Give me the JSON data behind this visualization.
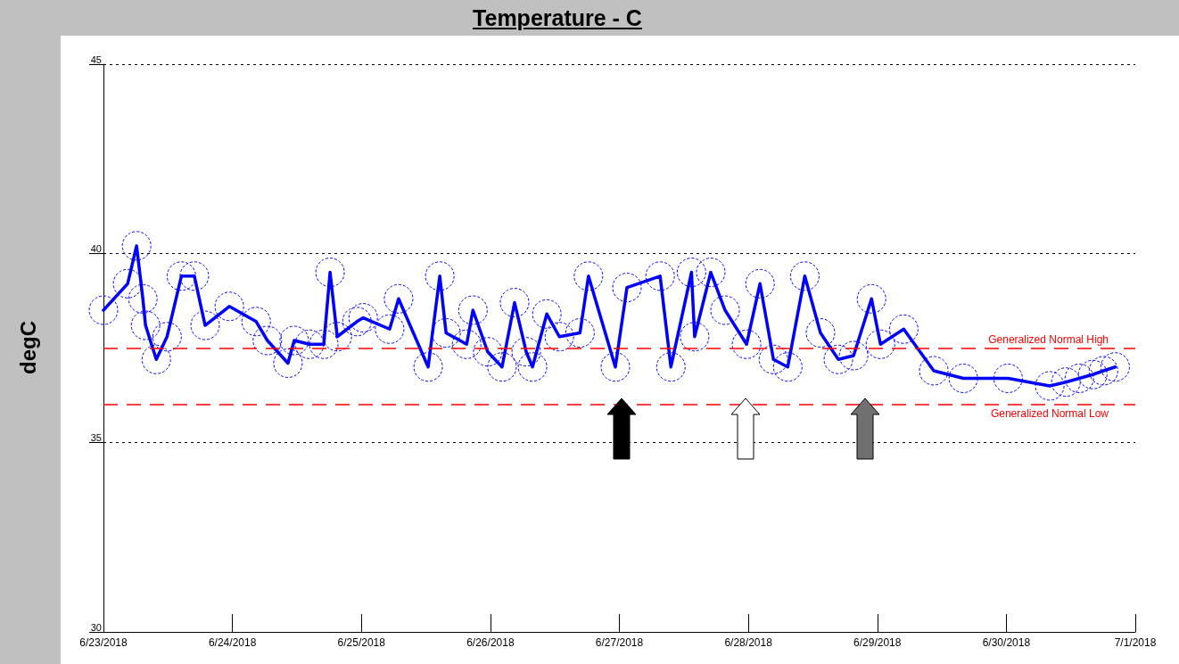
{
  "chart_data": {
    "type": "line",
    "title": "Temperature - C",
    "ylabel": "degC",
    "x": [
      "2018-06-23T00:00",
      "2018-06-23T04:30",
      "2018-06-23T06:10",
      "2018-06-23T07:20",
      "2018-06-23T07:50",
      "2018-06-23T09:50",
      "2018-06-23T11:50",
      "2018-06-23T14:30",
      "2018-06-23T16:55",
      "2018-06-23T18:55",
      "2018-06-23T23:25",
      "2018-06-24T04:25",
      "2018-06-24T06:30",
      "2018-06-24T10:20",
      "2018-06-24T11:30",
      "2018-06-24T14:20",
      "2018-06-24T17:00",
      "2018-06-24T18:10",
      "2018-06-24T19:30",
      "2018-06-24T23:10",
      "2018-06-25T00:20",
      "2018-06-25T05:15",
      "2018-06-25T06:55",
      "2018-06-25T12:25",
      "2018-06-25T14:35",
      "2018-06-25T15:45",
      "2018-06-25T19:35",
      "2018-06-25T20:45",
      "2018-06-25T23:30",
      "2018-06-26T02:10",
      "2018-06-26T04:30",
      "2018-06-26T06:40",
      "2018-06-26T07:50",
      "2018-06-26T10:30",
      "2018-06-26T12:50",
      "2018-06-26T16:40",
      "2018-06-26T18:15",
      "2018-06-26T23:15",
      "2018-06-27T01:25",
      "2018-06-27T07:35",
      "2018-06-27T09:35",
      "2018-06-27T13:25",
      "2018-06-27T14:00",
      "2018-06-27T17:00",
      "2018-06-27T19:40",
      "2018-06-27T23:40",
      "2018-06-28T02:10",
      "2018-06-28T04:40",
      "2018-06-28T07:20",
      "2018-06-28T10:30",
      "2018-06-28T13:25",
      "2018-06-28T16:45",
      "2018-06-28T19:35",
      "2018-06-28T22:55",
      "2018-06-29T00:35",
      "2018-06-29T04:55",
      "2018-06-29T10:30",
      "2018-06-29T16:00",
      "2018-06-30T00:20",
      "2018-06-30T08:05",
      "2018-06-30T11:05",
      "2018-06-30T13:35",
      "2018-06-30T16:05",
      "2018-06-30T18:05",
      "2018-06-30T20:15"
    ],
    "series": [
      {
        "color": "#0000ff",
        "values": [
          38.5,
          39.2,
          40.2,
          38.8,
          38.1,
          37.2,
          37.8,
          39.4,
          39.4,
          38.1,
          38.6,
          38.2,
          37.7,
          37.1,
          37.7,
          37.6,
          37.6,
          39.5,
          37.8,
          38.2,
          38.3,
          38.0,
          38.8,
          37.0,
          39.4,
          37.9,
          37.6,
          38.5,
          37.4,
          37.0,
          38.7,
          37.4,
          37.0,
          38.4,
          37.8,
          37.9,
          39.4,
          37.0,
          39.1,
          39.4,
          37.0,
          39.5,
          37.8,
          39.5,
          38.5,
          37.6,
          39.2,
          37.2,
          37.0,
          39.4,
          37.9,
          37.2,
          37.3,
          38.8,
          37.6,
          38.0,
          36.9,
          36.7,
          36.7,
          36.5,
          36.6,
          36.7,
          36.8,
          36.9,
          37.0
        ]
      }
    ],
    "xlim": [
      "2018-06-23",
      "2018-07-01"
    ],
    "xticks": [
      {
        "value": "2018-06-23",
        "label": "6/23/2018"
      },
      {
        "value": "2018-06-24",
        "label": "6/24/2018"
      },
      {
        "value": "2018-06-25",
        "label": "6/25/2018"
      },
      {
        "value": "2018-06-26",
        "label": "6/26/2018"
      },
      {
        "value": "2018-06-27",
        "label": "6/27/2018"
      },
      {
        "value": "2018-06-28",
        "label": "6/28/2018"
      },
      {
        "value": "2018-06-29",
        "label": "6/29/2018"
      },
      {
        "value": "2018-06-30",
        "label": "6/30/2018"
      },
      {
        "value": "2018-07-01",
        "label": "7/1/2018"
      }
    ],
    "ylim": [
      30,
      45
    ],
    "yticks": [
      30,
      35,
      40,
      45
    ],
    "grid": "y",
    "marker": "circle",
    "line_style": "solid",
    "ref_lines": [
      {
        "axis": "y",
        "value": 37.5,
        "label": "Generalized Normal High",
        "color": "#ff0000",
        "line_style": "dashed"
      },
      {
        "axis": "y",
        "value": 36,
        "label": "Generalized Normal Low",
        "color": "#ff0000",
        "line_style": "dashed"
      }
    ]
  }
}
